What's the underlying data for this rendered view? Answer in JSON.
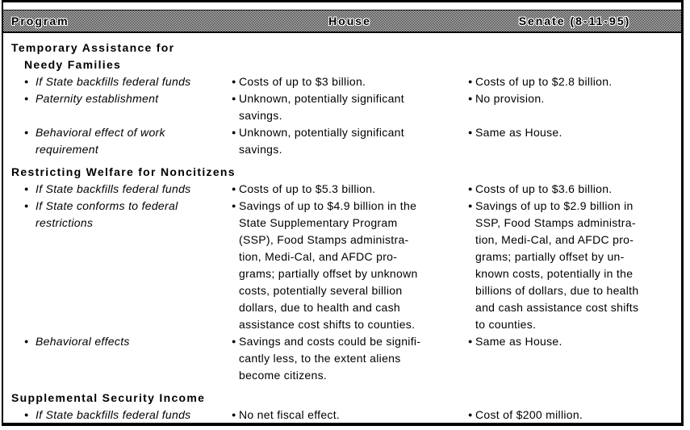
{
  "bullet_glyph": "●",
  "colors": {
    "text": "#000000",
    "background": "#ffffff",
    "header_dither_dark": "#000000",
    "header_dither_light": "#ffffff"
  },
  "header": {
    "columns": [
      "Program",
      "House",
      "Senate (8-11-95)"
    ]
  },
  "sections": [
    {
      "title_lines": [
        "Temporary Assistance for",
        "Needy Families"
      ],
      "rows": [
        {
          "program": "If State backfills federal funds",
          "house": "Costs of up to $3 billion.",
          "senate": "Costs of up to $2.8 billion."
        },
        {
          "program": "Paternity establishment",
          "house": "Unknown, potentially significant\nsavings.",
          "senate": "No provision."
        },
        {
          "program": "Behavioral effect of work\nrequirement",
          "house": "Unknown, potentially significant\nsavings.",
          "senate": "Same as House."
        }
      ]
    },
    {
      "title_lines": [
        "Restricting Welfare for Noncitizens"
      ],
      "rows": [
        {
          "program": "If State backfills federal funds",
          "house": "Costs of up to $5.3 billion.",
          "senate": "Costs of up to $3.6 billion."
        },
        {
          "program": "If State conforms to federal\nrestrictions",
          "house": "Savings of up to $4.9 billion in the\nState Supplementary Program\n(SSP), Food Stamps administra-\ntion, Medi-Cal, and AFDC pro-\ngrams; partially offset by unknown\ncosts, potentially several billion\ndollars, due to health and cash\nassistance cost shifts to counties.",
          "senate": "Savings of up to $2.9 billion in\nSSP, Food Stamps administra-\ntion, Medi-Cal, and AFDC pro-\ngrams; partially offset by un-\nknown costs, potentially in the\nbillions of dollars, due to health\nand cash assistance cost shifts\nto counties."
        },
        {
          "program": "Behavioral effects",
          "house": "Savings and costs could be signifi-\ncantly less, to the extent aliens\nbecome citizens.",
          "senate": "Same as House."
        }
      ]
    },
    {
      "title_lines": [
        "Supplemental Security Income"
      ],
      "rows": [
        {
          "program": "If State backfills federal funds",
          "house": "No net fiscal effect.",
          "senate": "Cost of $200 million."
        }
      ]
    }
  ]
}
